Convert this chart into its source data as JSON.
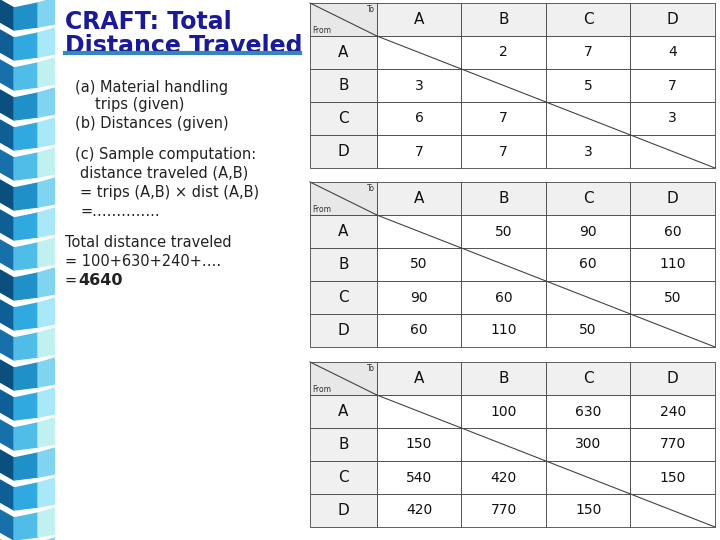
{
  "title_line1": "CRAFT: Total",
  "title_line2": "Distance Traveled",
  "title_color": "#1a1a99",
  "table1_header": [
    "",
    "A",
    "B",
    "C",
    "D"
  ],
  "table1_rows": [
    [
      "A",
      "",
      "2",
      "7",
      "4"
    ],
    [
      "B",
      "3",
      "",
      "5",
      "7"
    ],
    [
      "C",
      "6",
      "7",
      "",
      "3"
    ],
    [
      "D",
      "7",
      "7",
      "3",
      ""
    ]
  ],
  "table2_header": [
    "",
    "A",
    "B",
    "C",
    "D"
  ],
  "table2_rows": [
    [
      "A",
      "",
      "50",
      "90",
      "60"
    ],
    [
      "B",
      "50",
      "",
      "60",
      "110"
    ],
    [
      "C",
      "90",
      "60",
      "",
      "50"
    ],
    [
      "D",
      "60",
      "110",
      "50",
      ""
    ]
  ],
  "table3_header": [
    "",
    "A",
    "B",
    "C",
    "D"
  ],
  "table3_rows": [
    [
      "A",
      "",
      "100",
      "630",
      "240"
    ],
    [
      "B",
      "150",
      "",
      "300",
      "770"
    ],
    [
      "C",
      "540",
      "420",
      "",
      "150"
    ],
    [
      "D",
      "420",
      "770",
      "150",
      ""
    ]
  ],
  "stripe_colors": [
    "#0d5a8a",
    "#1a7ab5",
    "#3aa0d0",
    "#7acce8",
    "#aee4f2",
    "#c8eeee"
  ],
  "underline_color": "#3388bb",
  "text_color": "#222222"
}
